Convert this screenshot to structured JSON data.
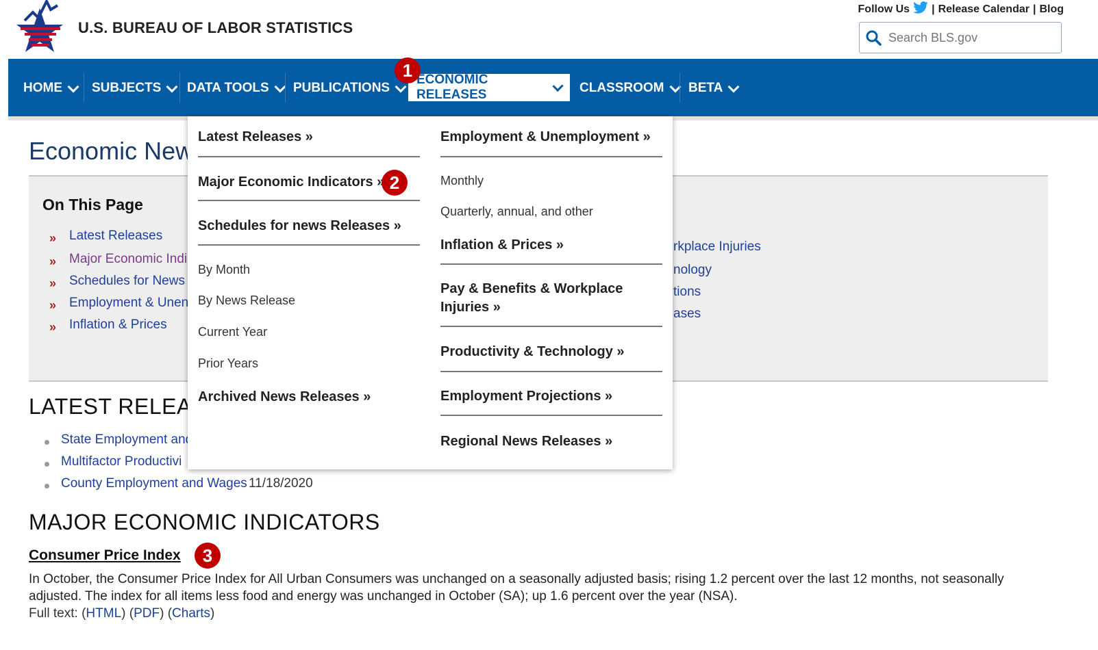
{
  "header": {
    "site_title": "U.S. BUREAU OF LABOR STATISTICS",
    "follow_us": "Follow Us",
    "release_calendar": "Release Calendar",
    "blog": "Blog",
    "search_placeholder": "Search BLS.gov"
  },
  "nav": {
    "items": [
      {
        "label": "HOME"
      },
      {
        "label": "SUBJECTS"
      },
      {
        "label": "DATA TOOLS"
      },
      {
        "label": "PUBLICATIONS"
      },
      {
        "label": "ECONOMIC RELEASES"
      },
      {
        "label": "CLASSROOM"
      },
      {
        "label": "BETA"
      }
    ]
  },
  "badges": {
    "one": "1",
    "two": "2",
    "three": "3"
  },
  "dropdown": {
    "left": {
      "latest": "Latest Releases »",
      "major": "Major Economic Indicators »",
      "schedules": "Schedules for news Releases »",
      "by_month": "By Month",
      "by_news_release": "By News Release",
      "current_year": "Current Year",
      "prior_years": "Prior Years",
      "archived": "Archived News Releases »"
    },
    "right": {
      "employment": "Employment & Unemployment »",
      "monthly": "Monthly",
      "quarterly": "Quarterly, annual, and other",
      "inflation": "Inflation & Prices »",
      "pay_line1": "Pay & Benefits & Workplace",
      "pay_line2": "Injuries »",
      "productivity": "Productivity & Technology »",
      "projections": "Employment Projections »",
      "regional": "Regional News Releases »"
    }
  },
  "page": {
    "title": "Economic New",
    "on_this_page": "On This Page",
    "toc": [
      "Latest Releases",
      "Major Economic Indi",
      "Schedules for News I",
      "Employment & Unen",
      "Inflation & Prices"
    ],
    "toc_right": [
      "rkplace Injuries",
      "nology",
      "tions",
      "ases"
    ],
    "latest_title": "LATEST RELEA",
    "latest": [
      {
        "text": "State Employment and",
        "date": ""
      },
      {
        "text": "Multifactor Productivi",
        "date": ""
      },
      {
        "text": "County Employment and Wages",
        "date": "11/18/2020"
      }
    ],
    "major_title": "MAJOR ECONOMIC INDICATORS",
    "cpi_title": "Consumer Price Index",
    "cpi_text": "In October, the Consumer Price Index for All Urban Consumers was unchanged on a seasonally adjusted basis; rising 1.2 percent over the last 12 months, not seasonally adjusted. The index for all items less food and energy was unchanged in October (SA); up 1.6 percent over the year (NSA).",
    "full_text_label": "Full text:",
    "html": "HTML",
    "pdf": "PDF",
    "charts": "Charts"
  },
  "colors": {
    "nav_blue": "#045ca5",
    "badge_red": "#c00000",
    "link_blue": "#1f3f9c"
  }
}
